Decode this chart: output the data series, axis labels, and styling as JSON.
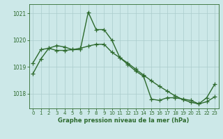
{
  "line1_x": [
    0,
    1,
    2,
    3,
    4,
    5,
    6,
    7,
    8,
    9,
    10,
    11,
    12,
    13,
    14,
    15,
    16,
    17,
    18,
    19,
    20,
    21,
    22,
    23
  ],
  "line1_y": [
    1018.75,
    1019.3,
    1019.7,
    1019.8,
    1019.75,
    1019.65,
    1019.65,
    1021.05,
    1020.4,
    1020.4,
    1020.0,
    1019.35,
    1019.1,
    1018.85,
    1018.65,
    1017.8,
    1017.75,
    1017.85,
    1017.85,
    1017.8,
    1017.75,
    1017.62,
    1017.85,
    1018.35
  ],
  "line2_x": [
    0,
    1,
    2,
    3,
    4,
    5,
    6,
    7,
    8,
    9,
    10,
    11,
    12,
    13,
    14,
    15,
    16,
    17,
    18,
    19,
    20,
    21,
    22,
    23
  ],
  "line2_y": [
    1019.15,
    1019.65,
    1019.7,
    1019.62,
    1019.62,
    1019.65,
    1019.7,
    1019.78,
    1019.85,
    1019.85,
    1019.55,
    1019.35,
    1019.15,
    1018.92,
    1018.7,
    1018.48,
    1018.28,
    1018.1,
    1017.92,
    1017.78,
    1017.68,
    1017.62,
    1017.7,
    1017.88
  ],
  "line_color": "#2d6a2d",
  "bg_color": "#cce8e8",
  "grid_color": "#aacccc",
  "xlabel": "Graphe pression niveau de la mer (hPa)",
  "yticks": [
    1018,
    1019,
    1020,
    1021
  ],
  "xticks": [
    0,
    1,
    2,
    3,
    4,
    5,
    6,
    7,
    8,
    9,
    10,
    11,
    12,
    13,
    14,
    15,
    16,
    17,
    18,
    19,
    20,
    21,
    22,
    23
  ],
  "ylim": [
    1017.45,
    1021.35
  ],
  "xlim": [
    -0.5,
    23.5
  ],
  "marker": "+",
  "markersize": 4,
  "linewidth": 1.0
}
